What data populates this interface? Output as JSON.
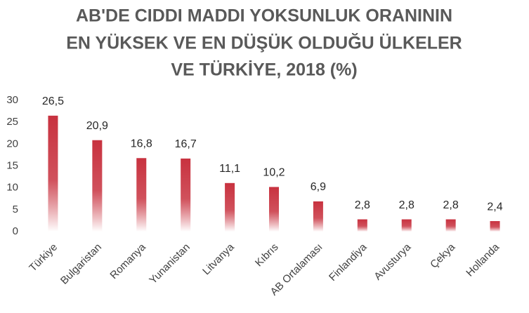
{
  "chart_data": {
    "type": "bar",
    "title": [
      "AB'DE CIDDI MADDI YOKSUNLUK ORANININ",
      "EN YÜKSEK VE EN DÜŞÜK OLDUĞU ÜLKELER",
      "VE TÜRKİYE, 2018 (%)"
    ],
    "categories": [
      "Türkiye",
      "Bulgaristan",
      "Romanya",
      "Yunanistan",
      "Litvanya",
      "Kıbrıs",
      "AB Ortalaması",
      "Finlandiya",
      "Avusturya",
      "Çekya",
      "Hollanda"
    ],
    "values": [
      26.5,
      20.9,
      16.8,
      16.7,
      11.1,
      10.2,
      6.9,
      2.8,
      2.8,
      2.8,
      2.4
    ],
    "value_labels": [
      "26,5",
      "20,9",
      "16,8",
      "16,7",
      "11,1",
      "10,2",
      "6,9",
      "2,8",
      "2,8",
      "2,8",
      "2,4"
    ],
    "color": "#c8323f",
    "ylim": [
      0,
      30
    ],
    "yticks": [
      0,
      5,
      10,
      15,
      20,
      25,
      30
    ],
    "grid": false
  }
}
